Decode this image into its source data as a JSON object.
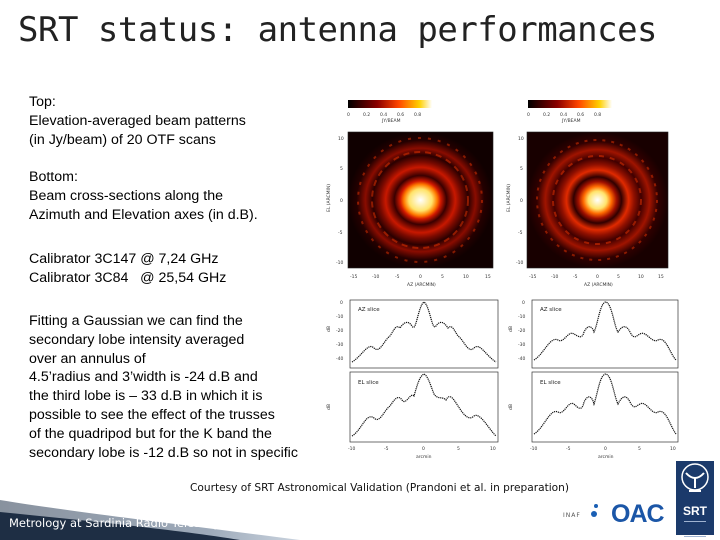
{
  "slide": {
    "title": "SRT status: antenna performances",
    "top_block": {
      "heading": "Top:",
      "lines": [
        "Elevation-averaged beam patterns",
        "(in Jy/beam) of 20 OTF scans"
      ]
    },
    "bottom_block": {
      "heading": "Bottom:",
      "lines": [
        "Beam cross-sections along the",
        "Azimuth and Elevation axes (in d.B)."
      ]
    },
    "calibrators": [
      "Calibrator 3C147 @ 7,24 GHz",
      "Calibrator 3C84   @ 25,54 GHz"
    ],
    "gaussian_block": [
      "Fitting a Gaussian we can find the",
      "secondary lobe intensity averaged",
      "over an annulus of",
      "4.5’radius and 3’width is -24 d.B and",
      "the third lobe is – 33 d.B in which it is",
      "possible to see the effect of the trusses",
      "of the quadripod but for the K band the",
      "secondary lobe is -12 d.B so not in specific"
    ],
    "courtesy": "Courtesy of SRT Astronomical Validation (Prandoni et al. in preparation)",
    "footer": "Metrology at Sardinia Radio Telescope",
    "logos": {
      "inaf": "INAF",
      "oac": "OAC",
      "srt": "SRT"
    }
  },
  "figure": {
    "colorbar_label": "JY/BEAM",
    "colorbar_ticks": [
      "0",
      "0.2",
      "0.4",
      "0.6",
      "0.8"
    ],
    "map_xlabel": "AZ (ARCMIN)",
    "map_ylabel": "EL (ARCMIN)",
    "map_yticks": [
      "10",
      "5",
      "0",
      "-5",
      "-10"
    ],
    "map_xticks": [
      "-15",
      "-10",
      "-5",
      "0",
      "5",
      "10",
      "15"
    ],
    "slice_az_label": "AZ slice",
    "slice_el_label": "EL slice",
    "slice_ylabel": "dB",
    "slice_yticks": [
      "0",
      "-10",
      "-20",
      "-30",
      "-40"
    ],
    "slice_xticks": [
      "-10",
      "-5",
      "0",
      "5",
      "10"
    ],
    "slice_xlabel": "arcmin"
  }
}
